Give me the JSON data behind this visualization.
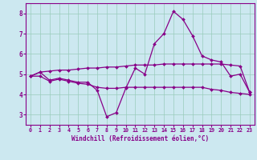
{
  "xlabel": "Windchill (Refroidissement éolien,°C)",
  "xlim": [
    -0.5,
    23.5
  ],
  "ylim": [
    2.5,
    8.5
  ],
  "yticks": [
    3,
    4,
    5,
    6,
    7,
    8
  ],
  "xticks": [
    0,
    1,
    2,
    3,
    4,
    5,
    6,
    7,
    8,
    9,
    10,
    11,
    12,
    13,
    14,
    15,
    16,
    17,
    18,
    19,
    20,
    21,
    22,
    23
  ],
  "background_color": "#cce8f0",
  "line_color": "#880088",
  "grid_color": "#99ccbb",
  "lines": [
    [
      4.9,
      5.1,
      4.7,
      4.8,
      4.7,
      4.6,
      4.6,
      4.2,
      2.9,
      3.1,
      4.3,
      5.3,
      5.0,
      6.5,
      7.0,
      8.1,
      7.7,
      6.9,
      5.9,
      5.7,
      5.6,
      4.9,
      5.0,
      4.1
    ],
    [
      4.9,
      5.1,
      5.15,
      5.2,
      5.2,
      5.25,
      5.3,
      5.3,
      5.35,
      5.35,
      5.4,
      5.45,
      5.45,
      5.45,
      5.5,
      5.5,
      5.5,
      5.5,
      5.5,
      5.5,
      5.5,
      5.45,
      5.4,
      4.1
    ],
    [
      4.9,
      4.9,
      4.65,
      4.75,
      4.65,
      4.55,
      4.5,
      4.35,
      4.3,
      4.3,
      4.35,
      4.35,
      4.35,
      4.35,
      4.35,
      4.35,
      4.35,
      4.35,
      4.35,
      4.25,
      4.2,
      4.1,
      4.05,
      4.0
    ]
  ]
}
